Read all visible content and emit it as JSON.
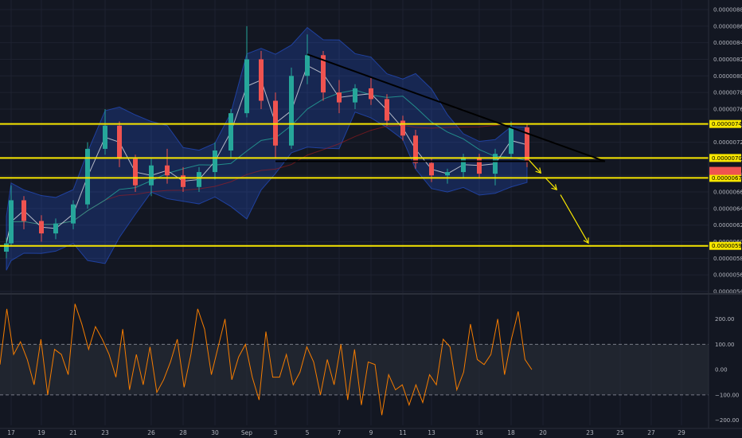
{
  "chart_data": [
    {
      "type": "candlestick",
      "panel": "price",
      "ylim": [
        5.4e-06,
        8.8e-06
      ],
      "y_ticks": [
        "0.00000880",
        "0.00000860",
        "0.00000840",
        "0.00000820",
        "0.00000800",
        "0.00000780",
        "0.00000760",
        "0.00000740",
        "0.00000720",
        "0.00000700",
        "0.00000680",
        "0.00000660",
        "0.00000640",
        "0.00000620",
        "0.00000600",
        "0.00000580",
        "0.00000560",
        "0.00000540"
      ],
      "x_ticks": [
        "17",
        "19",
        "21",
        "23",
        "26",
        "28",
        "30",
        "Sep",
        "3",
        "5",
        "7",
        "9",
        "11",
        "13",
        "16",
        "18",
        "20",
        "23",
        "25",
        "27",
        "29"
      ],
      "levels": [
        {
          "label": "0.00000742",
          "value": 7.42e-06,
          "color": "#f7e600"
        },
        {
          "label": "0.00000701",
          "value": 7.01e-06,
          "color": "#f7e600"
        },
        {
          "label": "0.00000677",
          "value": 6.77e-06,
          "color": "#f7e600"
        },
        {
          "label": "0.00000595",
          "value": 5.95e-06,
          "color": "#f7e600"
        }
      ],
      "current_price_color": "#ef5350",
      "colors": {
        "up": "#26a69a",
        "down": "#ef5350",
        "band": "#2962ff",
        "ma_fast": "#d1d4dc",
        "ma_mid": "#26a69a",
        "ma_slow": "#b71c1c"
      },
      "candles": [
        {
          "date": "Aug 16",
          "o": 5.88e-06,
          "h": 6.05e-06,
          "l": 5.8e-06,
          "c": 5.98e-06
        },
        {
          "date": "Aug 17",
          "o": 5.98e-06,
          "h": 6.68e-06,
          "l": 5.95e-06,
          "c": 6.5e-06
        },
        {
          "date": "Aug 18",
          "o": 6.5e-06,
          "h": 6.55e-06,
          "l": 6.15e-06,
          "c": 6.25e-06
        },
        {
          "date": "Aug 19",
          "o": 6.25e-06,
          "h": 6.32e-06,
          "l": 6e-06,
          "c": 6.1e-06
        },
        {
          "date": "Aug 20",
          "o": 6.1e-06,
          "h": 6.28e-06,
          "l": 6.03e-06,
          "c": 6.22e-06
        },
        {
          "date": "Aug 21",
          "o": 6.22e-06,
          "h": 6.5e-06,
          "l": 6.15e-06,
          "c": 6.45e-06
        },
        {
          "date": "Aug 22",
          "o": 6.45e-06,
          "h": 7.2e-06,
          "l": 6.4e-06,
          "c": 7.12e-06
        },
        {
          "date": "Aug 23",
          "o": 7.12e-06,
          "h": 7.6e-06,
          "l": 7.05e-06,
          "c": 7.4e-06
        },
        {
          "date": "Aug 24",
          "o": 7.4e-06,
          "h": 7.45e-06,
          "l": 6.9e-06,
          "c": 7e-06
        },
        {
          "date": "Aug 25",
          "o": 7e-06,
          "h": 7.05e-06,
          "l": 6.6e-06,
          "c": 6.68e-06
        },
        {
          "date": "Aug 26",
          "o": 6.68e-06,
          "h": 7e-06,
          "l": 6.55e-06,
          "c": 6.92e-06
        },
        {
          "date": "Aug 27",
          "o": 6.92e-06,
          "h": 7.12e-06,
          "l": 6.7e-06,
          "c": 6.8e-06
        },
        {
          "date": "Aug 28",
          "o": 6.8e-06,
          "h": 6.9e-06,
          "l": 6.6e-06,
          "c": 6.66e-06
        },
        {
          "date": "Aug 29",
          "o": 6.66e-06,
          "h": 6.9e-06,
          "l": 6.6e-06,
          "c": 6.84e-06
        },
        {
          "date": "Aug 30",
          "o": 6.84e-06,
          "h": 7.2e-06,
          "l": 6.75e-06,
          "c": 7.1e-06
        },
        {
          "date": "Aug 31",
          "o": 7.1e-06,
          "h": 7.6e-06,
          "l": 7e-06,
          "c": 7.55e-06
        },
        {
          "date": "Sep 1",
          "o": 7.55e-06,
          "h": 8.6e-06,
          "l": 7.5e-06,
          "c": 8.2e-06
        },
        {
          "date": "Sep 2",
          "o": 8.2e-06,
          "h": 8.3e-06,
          "l": 7.6e-06,
          "c": 7.7e-06
        },
        {
          "date": "Sep 3",
          "o": 7.7e-06,
          "h": 7.8e-06,
          "l": 7e-06,
          "c": 7.16e-06
        },
        {
          "date": "Sep 4",
          "o": 7.16e-06,
          "h": 8.1e-06,
          "l": 7.12e-06,
          "c": 8e-06
        },
        {
          "date": "Sep 5",
          "o": 8e-06,
          "h": 8.5e-06,
          "l": 7.9e-06,
          "c": 8.25e-06
        },
        {
          "date": "Sep 6",
          "o": 8.25e-06,
          "h": 8.3e-06,
          "l": 7.7e-06,
          "c": 7.8e-06
        },
        {
          "date": "Sep 7",
          "o": 7.8e-06,
          "h": 7.95e-06,
          "l": 7.55e-06,
          "c": 7.68e-06
        },
        {
          "date": "Sep 8",
          "o": 7.68e-06,
          "h": 7.9e-06,
          "l": 7.6e-06,
          "c": 7.85e-06
        },
        {
          "date": "Sep 9",
          "o": 7.85e-06,
          "h": 7.98e-06,
          "l": 7.65e-06,
          "c": 7.72e-06
        },
        {
          "date": "Sep 10",
          "o": 7.72e-06,
          "h": 7.78e-06,
          "l": 7.4e-06,
          "c": 7.46e-06
        },
        {
          "date": "Sep 11",
          "o": 7.46e-06,
          "h": 7.52e-06,
          "l": 7.22e-06,
          "c": 7.28e-06
        },
        {
          "date": "Sep 12",
          "o": 7.28e-06,
          "h": 7.35e-06,
          "l": 6.88e-06,
          "c": 6.95e-06
        },
        {
          "date": "Sep 13",
          "o": 6.95e-06,
          "h": 7e-06,
          "l": 6.72e-06,
          "c": 6.8e-06
        },
        {
          "date": "Sep 14",
          "o": 6.8e-06,
          "h": 6.88e-06,
          "l": 6.7e-06,
          "c": 6.84e-06
        },
        {
          "date": "Sep 15",
          "o": 6.84e-06,
          "h": 7.06e-06,
          "l": 6.78e-06,
          "c": 7.02e-06
        },
        {
          "date": "Sep 16",
          "o": 7.02e-06,
          "h": 7.06e-06,
          "l": 6.76e-06,
          "c": 6.82e-06
        },
        {
          "date": "Sep 17",
          "o": 6.82e-06,
          "h": 7.12e-06,
          "l": 6.68e-06,
          "c": 7.06e-06
        },
        {
          "date": "Sep 18",
          "o": 7.06e-06,
          "h": 7.45e-06,
          "l": 7e-06,
          "c": 7.38e-06
        },
        {
          "date": "Sep 19",
          "o": 7.38e-06,
          "h": 7.42e-06,
          "l": 6.9e-06,
          "c": 6.96e-06
        }
      ],
      "trend_lines": [
        {
          "from": {
            "date": "Sep 5",
            "price": 8.26e-06
          },
          "to": {
            "date": "Sep 24",
            "price": 6.97e-06
          },
          "color": "#000000"
        },
        {
          "from": {
            "date": "Sep 3",
            "price": 6.97e-06
          },
          "to": {
            "date": "Sep 24",
            "price": 6.97e-06
          },
          "color": "#000000"
        }
      ],
      "projection": {
        "color": "#f7e600",
        "points": [
          {
            "date": "Sep 19",
            "price": 7.01e-06
          },
          {
            "date": "Sep 20",
            "price": 6.8e-06
          },
          {
            "date": "Sep 21",
            "price": 6.6e-06
          },
          {
            "date": "Sep 23",
            "price": 5.95e-06
          }
        ]
      }
    },
    {
      "type": "line",
      "panel": "oscillator",
      "ylim": [
        -220,
        290
      ],
      "y_ticks": [
        "200.00",
        "100.00",
        "0.00",
        "−100.00",
        "−200.00"
      ],
      "band": [
        -100,
        100
      ],
      "color": "#f57c00",
      "values": [
        20,
        240,
        60,
        110,
        40,
        -60,
        120,
        -100,
        80,
        60,
        -20,
        260,
        180,
        80,
        170,
        120,
        60,
        -30,
        160,
        -80,
        60,
        -60,
        90,
        -90,
        -40,
        30,
        120,
        -70,
        60,
        240,
        160,
        -20,
        90,
        200,
        -40,
        50,
        100,
        -30,
        -120,
        150,
        -30,
        -30,
        60,
        -60,
        -10,
        90,
        30,
        -100,
        40,
        -60,
        100,
        -120,
        80,
        -140,
        30,
        20,
        -180,
        -20,
        -80,
        -60,
        -140,
        -60,
        -130,
        -20,
        -60,
        120,
        90,
        -80,
        -10,
        180,
        40,
        20,
        60,
        200,
        -20,
        120,
        230,
        40,
        0
      ]
    }
  ]
}
